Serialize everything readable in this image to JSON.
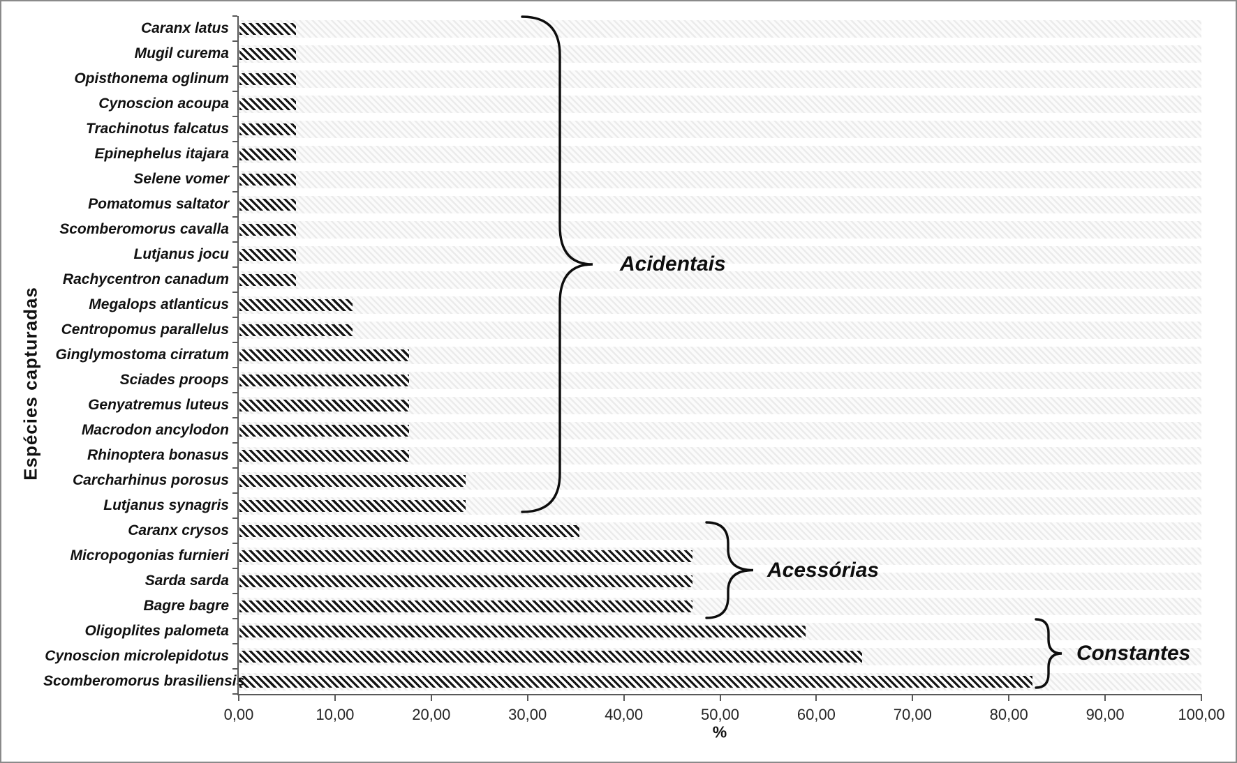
{
  "chart_data": {
    "type": "bar",
    "orientation": "horizontal",
    "title": "",
    "xlabel": "%",
    "ylabel": "Espécies capturadas",
    "xlim": [
      0,
      100
    ],
    "x_tick_values": [
      0,
      10,
      20,
      30,
      40,
      50,
      60,
      70,
      80,
      90,
      100
    ],
    "x_ticks": [
      "0,00",
      "10,00",
      "20,00",
      "30,00",
      "40,00",
      "50,00",
      "60,00",
      "70,00",
      "80,00",
      "90,00",
      "100,00"
    ],
    "grid": false,
    "legend": false,
    "bar_fill": "diagonal-hatch",
    "colors": {
      "bar": "#141414",
      "axis": "#595959",
      "text": "#1a1a1a"
    },
    "categories": [
      "Caranx latus",
      "Mugil curema",
      "Opisthonema oglinum",
      "Cynoscion acoupa",
      "Trachinotus falcatus",
      "Epinephelus itajara",
      "Selene vomer",
      "Pomatomus saltator",
      "Scomberomorus cavalla",
      "Lutjanus jocu",
      "Rachycentron canadum",
      "Megalops atlanticus",
      "Centropomus parallelus",
      "Ginglymostoma cirratum",
      "Sciades proops",
      "Genyatremus luteus",
      "Macrodon ancylodon",
      "Rhinoptera bonasus",
      "Carcharhinus porosus",
      "Lutjanus synagris",
      "Caranx crysos",
      "Micropogonias furnieri",
      "Sarda sarda",
      "Bagre bagre",
      "Oligoplites palometa",
      "Cynoscion microlepidotus",
      "Scomberomorus brasiliensis"
    ],
    "values": [
      5.88,
      5.88,
      5.88,
      5.88,
      5.88,
      5.88,
      5.88,
      5.88,
      5.88,
      5.88,
      5.88,
      11.76,
      11.76,
      17.65,
      17.65,
      17.65,
      17.65,
      17.65,
      23.53,
      23.53,
      35.29,
      47.06,
      47.06,
      47.06,
      58.82,
      64.71,
      82.35
    ],
    "groups": [
      {
        "label": "Acidentais",
        "from": 0,
        "to": 19
      },
      {
        "label": "Acessórias",
        "from": 20,
        "to": 23
      },
      {
        "label": "Constantes",
        "from": 24,
        "to": 26
      }
    ]
  }
}
